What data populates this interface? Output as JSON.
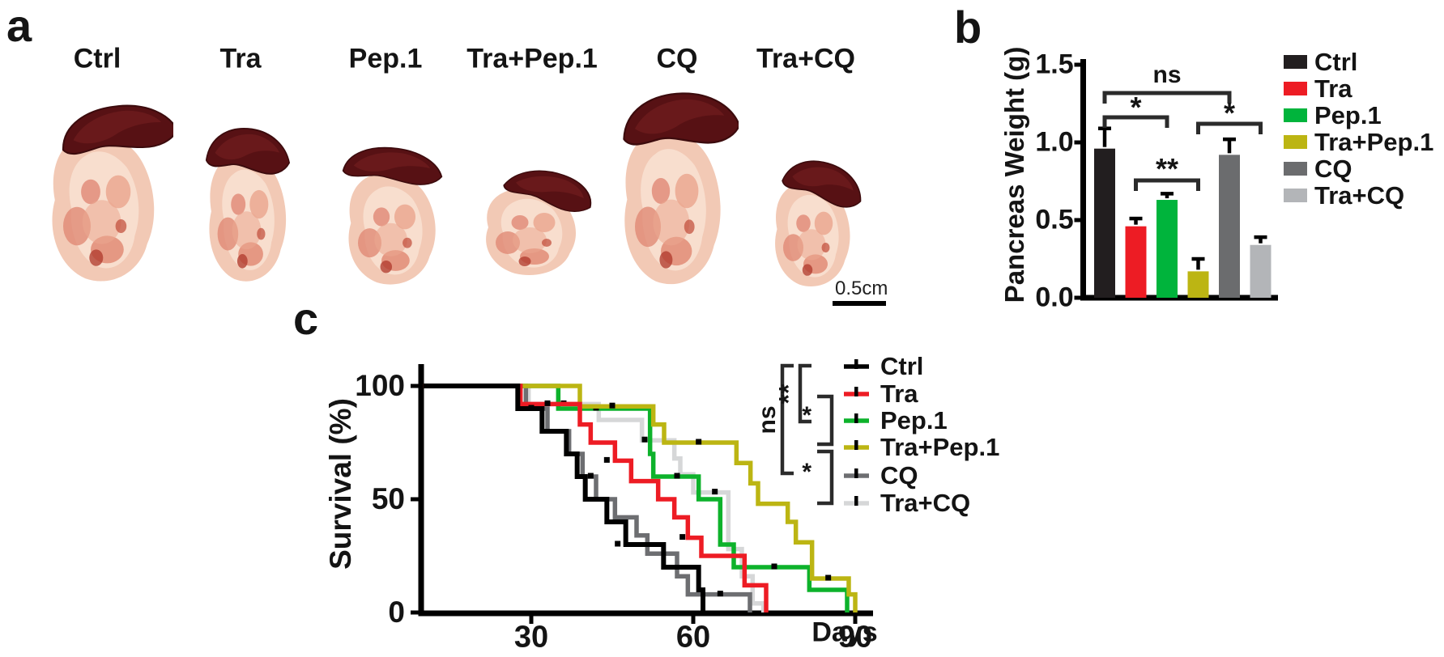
{
  "figure": {
    "panel_a_label": "a",
    "panel_b_label": "b",
    "panel_c_label": "c"
  },
  "panels": {
    "a": {
      "label": "a",
      "specimens": [
        {
          "name": "Ctrl"
        },
        {
          "name": "Tra"
        },
        {
          "name": "Pep.1"
        },
        {
          "name": "Tra+Pep.1"
        },
        {
          "name": "CQ"
        },
        {
          "name": "Tra+CQ"
        }
      ],
      "scale_bar_text": "0.5cm"
    },
    "b": {
      "label": "b"
    },
    "c": {
      "label": "c"
    }
  },
  "chart_data": [
    {
      "id": "pancreas-weight-bar",
      "type": "bar",
      "title": "",
      "xlabel": "",
      "ylabel": "Pancreas Weight (g)",
      "ylim": [
        0,
        1.5
      ],
      "yticks": [
        0,
        0.5,
        1.0,
        1.5
      ],
      "ytick_labels": [
        "0.0",
        "0.5",
        "1.0",
        "1.5"
      ],
      "categories": [
        "Ctrl",
        "Tra",
        "Pep.1",
        "Tra+Pep.1",
        "CQ",
        "Tra+CQ"
      ],
      "values": [
        0.96,
        0.46,
        0.63,
        0.17,
        0.92,
        0.34
      ],
      "errors": [
        0.13,
        0.05,
        0.04,
        0.08,
        0.1,
        0.05
      ],
      "colors": [
        "#221e1f",
        "#ed1c24",
        "#00b43c",
        "#bcb513",
        "#6b6c6e",
        "#b3b5b8"
      ],
      "grid": false,
      "legend_position": "right",
      "significance": [
        {
          "label": "ns",
          "from": "Ctrl",
          "to": "CQ"
        },
        {
          "label": "*",
          "from": "Ctrl",
          "to": "Pep.1"
        },
        {
          "label": "**",
          "from": "Tra",
          "to": "Tra+Pep.1"
        },
        {
          "label": "*",
          "from": "Tra+Pep.1",
          "to": "Tra+CQ"
        }
      ]
    },
    {
      "id": "survival-km",
      "type": "line",
      "subtype": "kaplan-meier",
      "title": "",
      "xlabel": "Days",
      "ylabel": "Survival (%)",
      "xlim": [
        10,
        93
      ],
      "ylim": [
        0,
        100
      ],
      "xticks": [
        30,
        60,
        90
      ],
      "xtick_labels": [
        "30",
        "60",
        "90"
      ],
      "yticks": [
        0,
        50,
        100
      ],
      "ytick_labels": [
        "0",
        "50",
        "100"
      ],
      "grid": false,
      "legend_position": "right",
      "series": [
        {
          "name": "Ctrl",
          "color": "#000000",
          "start": [
            10,
            100
          ],
          "steps": [
            [
              27.5,
              90
            ],
            [
              32,
              80
            ],
            [
              36.5,
              70
            ],
            [
              38.5,
              60
            ],
            [
              40,
              50
            ],
            [
              44,
              40
            ],
            [
              47.5,
              30
            ],
            [
              54.5,
              20
            ],
            [
              61,
              10
            ],
            [
              61.8,
              0
            ]
          ],
          "censor_marks": [
            [
              30,
              90
            ],
            [
              46,
              30
            ]
          ]
        },
        {
          "name": "Tra",
          "color": "#ed1c24",
          "start": [
            10,
            100
          ],
          "steps": [
            [
              28,
              92
            ],
            [
              39,
              83
            ],
            [
              41,
              75
            ],
            [
              45.5,
              67
            ],
            [
              48.5,
              58
            ],
            [
              53.5,
              50
            ],
            [
              56.5,
              42
            ],
            [
              59,
              33
            ],
            [
              61.5,
              25
            ],
            [
              69.5,
              12
            ],
            [
              73.5,
              0
            ]
          ],
          "censor_marks": [
            [
              33,
              92
            ],
            [
              44,
              67
            ],
            [
              58,
              33
            ]
          ]
        },
        {
          "name": "Pep.1",
          "color": "#0db22b",
          "start": [
            10,
            100
          ],
          "steps": [
            [
              35,
              90
            ],
            [
              52,
              70
            ],
            [
              52.6,
              60
            ],
            [
              61,
              50
            ],
            [
              65,
              30
            ],
            [
              67.5,
              20
            ],
            [
              81.5,
              10
            ],
            [
              88.5,
              0
            ]
          ],
          "censor_marks": [
            [
              42,
              90
            ],
            [
              57,
              60
            ],
            [
              75,
              20
            ]
          ]
        },
        {
          "name": "Tra+Pep.1",
          "color": "#bcb513",
          "start": [
            10,
            100
          ],
          "steps": [
            [
              39,
              91
            ],
            [
              52.6,
              83
            ],
            [
              54.6,
              75
            ],
            [
              68,
              66
            ],
            [
              70.6,
              57
            ],
            [
              72,
              48
            ],
            [
              77.5,
              40
            ],
            [
              79,
              31
            ],
            [
              82,
              15
            ],
            [
              88.8,
              8
            ],
            [
              90,
              0
            ]
          ],
          "censor_marks": [
            [
              45,
              91
            ],
            [
              61,
              75
            ],
            [
              85,
              15
            ]
          ]
        },
        {
          "name": "CQ",
          "color": "#6d6e71",
          "start": [
            10,
            100
          ],
          "steps": [
            [
              29,
              90
            ],
            [
              33,
              80
            ],
            [
              37,
              70
            ],
            [
              39.5,
              60
            ],
            [
              42,
              50
            ],
            [
              45.5,
              42
            ],
            [
              49.5,
              34
            ],
            [
              51.5,
              26
            ],
            [
              57,
              16
            ],
            [
              59,
              8
            ],
            [
              70.5,
              0
            ]
          ],
          "censor_marks": [
            [
              31,
              90
            ],
            [
              41,
              60
            ],
            [
              65,
              8
            ]
          ]
        },
        {
          "name": "Tra+CQ",
          "color": "#d6d7d8",
          "start": [
            10,
            100
          ],
          "steps": [
            [
              29.5,
              92
            ],
            [
              42.5,
              85
            ],
            [
              50.5,
              76
            ],
            [
              56.5,
              68
            ],
            [
              57.6,
              61
            ],
            [
              60,
              53
            ],
            [
              66.5,
              28
            ],
            [
              69,
              16
            ],
            [
              71,
              4
            ],
            [
              73,
              0
            ]
          ],
          "censor_marks": [
            [
              36,
              92
            ],
            [
              51,
              76
            ],
            [
              64,
              53
            ]
          ]
        }
      ],
      "significance": [
        {
          "label": "ns",
          "from": "Ctrl",
          "to": "CQ"
        },
        {
          "label": "**",
          "from": "Ctrl",
          "to": "Pep.1"
        },
        {
          "label": "*",
          "from": "Tra",
          "to": "Tra+Pep.1"
        },
        {
          "label": "*",
          "from": "Tra+Pep.1",
          "to": "Tra+CQ"
        }
      ]
    }
  ]
}
